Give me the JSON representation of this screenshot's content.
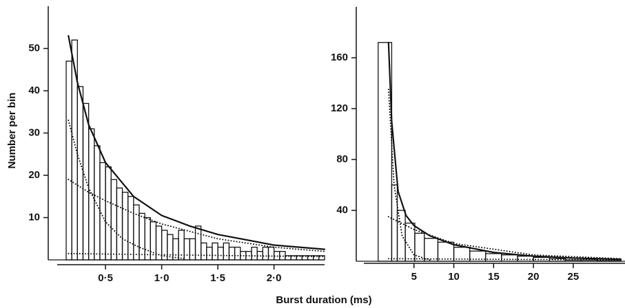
{
  "chart_data": [
    {
      "type": "histogram",
      "ylabel": "Number per bin",
      "bins": [
        0.15,
        0.2,
        0.25,
        0.3,
        0.35,
        0.4,
        0.45,
        0.5,
        0.55,
        0.6,
        0.65,
        0.7,
        0.75,
        0.8,
        0.85,
        0.9,
        0.95,
        1.0,
        1.05,
        1.1,
        1.15,
        1.2,
        1.25,
        1.3,
        1.35,
        1.4,
        1.45,
        1.5,
        1.55,
        1.6,
        1.65,
        1.7,
        1.75,
        1.8,
        1.85,
        1.9,
        1.95,
        2.0,
        2.05,
        2.1,
        2.15,
        2.2,
        2.25,
        2.3,
        2.35,
        2.4,
        2.45
      ],
      "counts": [
        47,
        52,
        41,
        37,
        31,
        27,
        23,
        22,
        19,
        17,
        16,
        15,
        13,
        11,
        10,
        9,
        8,
        7,
        6,
        5,
        7,
        5,
        5,
        8,
        4,
        3,
        4,
        3,
        4,
        3,
        3,
        2,
        2,
        3,
        2,
        3,
        3,
        2,
        2,
        1,
        1,
        1,
        1,
        1,
        1,
        1
      ],
      "series": [
        {
          "style": "solid",
          "x": [
            0.17,
            0.25,
            0.35,
            0.5,
            0.75,
            1.0,
            1.25,
            1.5,
            2.0,
            2.45
          ],
          "values": [
            53,
            42,
            32,
            23,
            15,
            10.5,
            8,
            6,
            3.5,
            2.5
          ]
        },
        {
          "style": "dotted",
          "x": [
            0.17,
            0.25,
            0.35,
            0.5,
            0.65,
            0.8,
            1.0,
            1.2
          ],
          "values": [
            33,
            25,
            17,
            9,
            5,
            3,
            1,
            0.3
          ]
        },
        {
          "style": "dotted",
          "x": [
            0.17,
            0.35,
            0.5,
            0.75,
            1.0,
            1.5,
            2.0,
            2.45
          ],
          "values": [
            19,
            16,
            14,
            11,
            8.5,
            5,
            3,
            2
          ]
        },
        {
          "style": "dotted",
          "x": [
            0.17,
            1.0,
            2.0,
            2.45
          ],
          "values": [
            1.5,
            1.2,
            0.9,
            0.8
          ]
        }
      ],
      "xlim": [
        0.07,
        2.45
      ],
      "ylim": [
        0,
        60
      ],
      "xticks": [
        {
          "value": 0.5,
          "label": "0·5"
        },
        {
          "value": 1.0,
          "label": "1·0"
        },
        {
          "value": 1.5,
          "label": "1·5"
        },
        {
          "value": 2.0,
          "label": "2·0"
        }
      ],
      "yticks": [
        10,
        20,
        30,
        40,
        50
      ]
    },
    {
      "type": "histogram",
      "bins": [
        0.5,
        2.2,
        2.9,
        3.9,
        5.1,
        6.3,
        8,
        10,
        12,
        14,
        16,
        18,
        20,
        22,
        24,
        26,
        28,
        31
      ],
      "counts": [
        172,
        60,
        40,
        30,
        22,
        18,
        15,
        11,
        8,
        6,
        5,
        4,
        3,
        2,
        1,
        1,
        0.5
      ],
      "series": [
        {
          "style": "solid",
          "x": [
            1.8,
            2.2,
            3,
            4,
            5,
            7,
            10,
            15,
            20,
            25,
            31
          ],
          "values": [
            172,
            110,
            55,
            36,
            28,
            20,
            13,
            7,
            4,
            2.5,
            1.5
          ]
        },
        {
          "style": "dotted",
          "x": [
            1.8,
            2.5,
            3.5,
            5,
            7
          ],
          "values": [
            135,
            60,
            20,
            5,
            1
          ]
        },
        {
          "style": "dotted",
          "x": [
            1.8,
            5,
            10,
            20,
            31
          ],
          "values": [
            35,
            25,
            14,
            5,
            2
          ]
        },
        {
          "style": "dotted",
          "x": [
            1.8,
            31
          ],
          "values": [
            2,
            1
          ]
        }
      ],
      "xlim": [
        -1.3,
        31.5
      ],
      "ylim": [
        0,
        200
      ],
      "xticks": [
        5,
        10,
        15,
        20,
        25
      ],
      "yticks": [
        40,
        80,
        120,
        160
      ]
    }
  ],
  "xlabel": "Burst duration (ms)"
}
